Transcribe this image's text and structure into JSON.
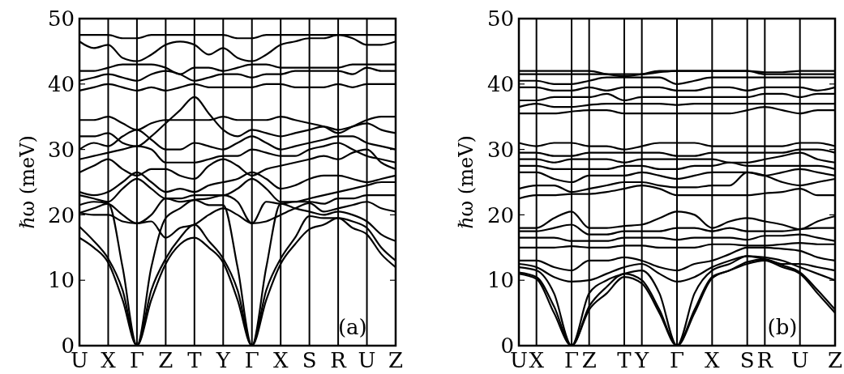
{
  "chart_data": [
    {
      "type": "line",
      "ylabel": "ℏω (meV)",
      "annotations": [
        "(a)"
      ],
      "grid": "x",
      "categories": [
        "U",
        null,
        "X",
        null,
        "Γ",
        null,
        "Z",
        null,
        "T",
        null,
        "Y",
        null,
        "Γ",
        null,
        "X",
        null,
        "S",
        null,
        "R",
        null,
        "U",
        null,
        "Z"
      ],
      "ylim": [
        0,
        50
      ],
      "yticks": [
        0,
        10,
        20,
        30,
        40,
        50
      ],
      "series": [
        {
          "color": "#000000",
          "values": [
            16.5,
            15,
            12.7,
            7,
            0,
            7,
            12.5,
            15.5,
            16.5,
            15,
            12.7,
            7,
            0,
            7,
            12.5,
            15.5,
            17.8,
            18.5,
            19.5,
            18,
            17,
            14,
            12
          ]
        },
        {
          "color": "#000000",
          "values": [
            18.2,
            16,
            13.3,
            8.5,
            0,
            8.5,
            13.3,
            16.5,
            18.5,
            16,
            13.3,
            8.5,
            0,
            8.5,
            13.3,
            16.5,
            19.8,
            19.5,
            19.5,
            19,
            18,
            15,
            13
          ]
        },
        {
          "color": "#000000",
          "values": [
            20.3,
            21,
            21.7,
            12,
            0,
            12,
            19.5,
            21,
            22.3,
            21.5,
            21.5,
            12,
            0,
            12,
            21.7,
            21,
            20.5,
            20,
            20.5,
            20,
            19,
            17,
            16
          ]
        },
        {
          "color": "#000000",
          "values": [
            20.3,
            20,
            20,
            19,
            18.7,
            19,
            16.5,
            18,
            18.5,
            20,
            21,
            20,
            18.7,
            19,
            20,
            21,
            21.8,
            20.5,
            21,
            21.5,
            22,
            21,
            20.5
          ]
        },
        {
          "color": "#000000",
          "values": [
            21.5,
            22,
            21.7,
            20,
            18.7,
            20,
            22.5,
            22,
            22.3,
            22.5,
            23,
            22,
            18.7,
            22,
            21.7,
            22,
            22,
            21.7,
            22.5,
            22.5,
            23,
            23,
            23
          ]
        },
        {
          "color": "#000000",
          "values": [
            23,
            22.5,
            22,
            24,
            25.5,
            24,
            22.5,
            22.5,
            23,
            23,
            23,
            24,
            25.5,
            24,
            22,
            22,
            22.5,
            23,
            23.5,
            24,
            24.5,
            25,
            25
          ]
        },
        {
          "color": "#000000",
          "values": [
            23.5,
            23,
            23.5,
            25,
            26.5,
            25,
            23.5,
            24,
            23.5,
            24.5,
            25,
            25.5,
            26.5,
            25.5,
            24,
            24.5,
            25.5,
            26,
            26,
            25.5,
            25,
            25.5,
            26
          ]
        },
        {
          "color": "#000000",
          "values": [
            26.5,
            27.5,
            28.5,
            27,
            26,
            27,
            27,
            26,
            25.5,
            27.5,
            28.5,
            27.5,
            26,
            27,
            27.5,
            28,
            28.5,
            29,
            28.5,
            29.5,
            30,
            28,
            27
          ]
        },
        {
          "color": "#000000",
          "values": [
            28.5,
            29,
            29.5,
            30,
            30.5,
            30,
            28,
            28,
            28,
            28.5,
            29,
            29,
            30,
            29.5,
            29,
            29,
            30,
            30.5,
            31,
            30,
            29,
            28.5,
            28
          ]
        },
        {
          "color": "#000000",
          "values": [
            30,
            31,
            30.5,
            32,
            33,
            31.5,
            30,
            30,
            31,
            30.5,
            30,
            31,
            32,
            31,
            30,
            30.5,
            31,
            31.5,
            32,
            32,
            31,
            30.5,
            30
          ]
        },
        {
          "color": "#000000",
          "values": [
            32,
            32,
            32.5,
            31,
            30.5,
            32,
            34,
            36,
            38,
            35.5,
            33,
            32,
            33,
            32.5,
            32,
            32.5,
            33,
            33.5,
            33,
            33.5,
            34,
            33,
            32.5
          ]
        },
        {
          "color": "#000000",
          "values": [
            34.5,
            34.5,
            35,
            34,
            33,
            34,
            34.5,
            34.5,
            34.5,
            34.5,
            35,
            34.5,
            34.5,
            34.5,
            35,
            34.5,
            34,
            33.5,
            32.5,
            33.5,
            34.5,
            35,
            35
          ]
        },
        {
          "color": "#000000",
          "values": [
            39,
            39.5,
            40,
            39.5,
            39,
            39.5,
            39,
            39.5,
            40,
            39.5,
            39.5,
            39.5,
            39.5,
            40,
            40,
            39.5,
            39.5,
            39.5,
            40,
            39.5,
            40,
            40,
            40
          ]
        },
        {
          "color": "#000000",
          "values": [
            40.5,
            41,
            41.5,
            41,
            40.5,
            41.5,
            42,
            41.5,
            40.5,
            41,
            41.5,
            41.5,
            41,
            41.5,
            41.5,
            42,
            42,
            42,
            42,
            41.5,
            42.5,
            42,
            42
          ]
        },
        {
          "color": "#000000",
          "values": [
            42,
            42,
            42.5,
            43,
            43,
            43,
            42.5,
            41.5,
            42.5,
            42.5,
            42,
            42.5,
            43,
            43,
            42.5,
            42.5,
            42.5,
            42.5,
            42.5,
            43,
            43,
            43,
            43
          ]
        },
        {
          "color": "#000000",
          "values": [
            46.5,
            45.5,
            46,
            44,
            43.5,
            44.5,
            46,
            46.5,
            46,
            44.5,
            45.5,
            44,
            43.5,
            44.5,
            46,
            46.5,
            47,
            47,
            47.5,
            47,
            46,
            46,
            46.5
          ]
        },
        {
          "color": "#000000",
          "values": [
            47.5,
            47.5,
            47.5,
            47,
            47,
            47.5,
            47.5,
            47.5,
            47.5,
            47.5,
            47.5,
            47,
            47,
            47.5,
            47.5,
            47.5,
            47.5,
            47.5,
            47.5,
            47.5,
            47.5,
            47.5,
            47.5
          ]
        }
      ]
    },
    {
      "type": "line",
      "ylabel": "ℏω (meV)",
      "annotations": [
        "(b)"
      ],
      "grid": "x",
      "categories": [
        "U",
        "X",
        null,
        "Γ",
        "Z",
        null,
        "T",
        "Y",
        null,
        "Γ",
        null,
        "X",
        null,
        "S",
        "R",
        null,
        "U",
        null,
        "Z"
      ],
      "ylim": [
        0,
        50
      ],
      "yticks": [
        0,
        10,
        20,
        30,
        40,
        50
      ],
      "series": [
        {
          "color": "#000000",
          "values": [
            11,
            10.2,
            5,
            0,
            5.5,
            8,
            10.5,
            9.5,
            5,
            0,
            5,
            10.3,
            11.5,
            12.5,
            13,
            12,
            11,
            8,
            5
          ]
        },
        {
          "color": "#000000",
          "values": [
            11.2,
            10.5,
            6,
            0,
            6,
            9,
            11,
            10,
            5.5,
            0,
            5.5,
            10.5,
            11.5,
            12.8,
            13.2,
            12.3,
            11.2,
            8.5,
            5.5
          ]
        },
        {
          "color": "#000000",
          "values": [
            12,
            11.5,
            8,
            0,
            8,
            10,
            11,
            11.5,
            8,
            0,
            8,
            11.5,
            12.5,
            13.7,
            13.5,
            13,
            12,
            11,
            10
          ]
        },
        {
          "color": "#000000",
          "values": [
            12.5,
            12,
            10.5,
            9.8,
            10,
            11,
            12,
            12.5,
            11,
            9.8,
            10.5,
            12,
            13,
            13.7,
            13.2,
            12.5,
            12.5,
            12,
            11.5
          ]
        },
        {
          "color": "#000000",
          "values": [
            13,
            13,
            12,
            11.5,
            13,
            13,
            13.5,
            13,
            12,
            11.5,
            12.5,
            13,
            14,
            15,
            15,
            14.8,
            14.5,
            13.5,
            13
          ]
        },
        {
          "color": "#000000",
          "values": [
            15,
            15,
            15,
            15.2,
            15,
            15,
            15.3,
            15.3,
            15,
            15,
            15,
            15.5,
            15.5,
            15.3,
            15.3,
            15.5,
            15.7,
            15.5,
            15.5
          ]
        },
        {
          "color": "#000000",
          "values": [
            16.5,
            16.5,
            16.5,
            16,
            16,
            16,
            16.5,
            16.5,
            16.5,
            16.2,
            16.5,
            16.5,
            16.5,
            16.2,
            16.8,
            16.8,
            17,
            16.5,
            16
          ]
        },
        {
          "color": "#000000",
          "values": [
            17.5,
            17.5,
            18,
            18.5,
            17,
            17,
            17.5,
            17.5,
            17.5,
            18,
            18,
            17.5,
            18,
            17.5,
            17.5,
            17.5,
            17.8,
            18,
            18
          ]
        },
        {
          "color": "#000000",
          "values": [
            18,
            18,
            19.5,
            20.5,
            18,
            18,
            18.3,
            18.5,
            19.5,
            20.5,
            20,
            18,
            19,
            19.5,
            19,
            18.5,
            17.8,
            19,
            19.8
          ]
        },
        {
          "color": "#000000",
          "values": [
            22.5,
            23,
            23,
            23.2,
            23.2,
            23.5,
            24,
            24.5,
            24,
            23,
            23,
            23,
            23,
            23,
            23.3,
            23.5,
            24,
            23,
            23
          ]
        },
        {
          "color": "#000000",
          "values": [
            24,
            24.5,
            24.5,
            23.5,
            24,
            24.5,
            25,
            25,
            24.5,
            24.2,
            24.2,
            24.5,
            24.5,
            26.5,
            26,
            25,
            24.5,
            25,
            25.5
          ]
        },
        {
          "color": "#000000",
          "values": [
            26.5,
            26.5,
            25.5,
            25,
            26,
            26,
            26,
            26.5,
            26,
            25.5,
            26,
            26.5,
            26.5,
            26.5,
            26,
            26.5,
            27,
            26.5,
            26
          ]
        },
        {
          "color": "#000000",
          "values": [
            27.5,
            27.5,
            27,
            27,
            27,
            27,
            27.5,
            27.5,
            27,
            27,
            27.5,
            27.5,
            28,
            27.5,
            27.5,
            27.5,
            27.5,
            27.5,
            27
          ]
        },
        {
          "color": "#000000",
          "values": [
            28.5,
            28.5,
            28,
            28.5,
            28.5,
            28.5,
            28,
            28.5,
            28.5,
            28.5,
            28.5,
            28.5,
            28,
            28,
            28.5,
            29,
            29.5,
            28.5,
            28
          ]
        },
        {
          "color": "#000000",
          "values": [
            29.5,
            29.5,
            29,
            29,
            29.5,
            29.5,
            29.5,
            29.5,
            29.5,
            29,
            29,
            29.5,
            29.5,
            29.5,
            29.5,
            29.5,
            30,
            30,
            29.5
          ]
        },
        {
          "color": "#000000",
          "values": [
            31,
            30.5,
            31,
            31,
            30.5,
            30.5,
            30,
            30.5,
            31,
            31,
            31,
            30.5,
            30.5,
            30.5,
            30.5,
            30.5,
            31,
            31,
            30.5
          ]
        },
        {
          "color": "#000000",
          "values": [
            35.5,
            35.5,
            35.5,
            35.8,
            36,
            36,
            35.5,
            35.5,
            35.5,
            35.5,
            35.5,
            35.5,
            35.5,
            36,
            36.5,
            36,
            35.5,
            36,
            36
          ]
        },
        {
          "color": "#000000",
          "values": [
            36.5,
            37,
            36.5,
            36.5,
            36.8,
            37,
            37,
            37,
            37,
            36.8,
            37,
            37,
            37,
            37,
            37,
            37,
            37,
            37,
            37
          ]
        },
        {
          "color": "#000000",
          "values": [
            37.5,
            37.5,
            38,
            38,
            38,
            38.5,
            37.5,
            38,
            38,
            38,
            38,
            38,
            38,
            38,
            38.5,
            38.5,
            38,
            38.5,
            38.5
          ]
        },
        {
          "color": "#000000",
          "values": [
            39.5,
            39.5,
            39,
            39,
            39.5,
            39,
            39.5,
            39.5,
            39.5,
            39,
            39,
            39.5,
            39.5,
            39,
            39.5,
            39.5,
            39.5,
            39,
            39.5
          ]
        },
        {
          "color": "#000000",
          "values": [
            40.5,
            40.5,
            40,
            40,
            40.5,
            41,
            41,
            41,
            41,
            40,
            40.5,
            41,
            41,
            41,
            41,
            41,
            41,
            41,
            41
          ]
        },
        {
          "color": "#000000",
          "values": [
            41.5,
            41.5,
            41.5,
            41.5,
            41.5,
            41.5,
            41.5,
            41.5,
            41.8,
            42,
            42,
            42,
            42,
            42,
            41.5,
            41.5,
            41.5,
            41.5,
            41.5
          ]
        },
        {
          "color": "#000000",
          "values": [
            42,
            42,
            42,
            42,
            42,
            41.5,
            41.2,
            41.5,
            42,
            42,
            42,
            42,
            42,
            42,
            41.8,
            41.8,
            42,
            42,
            42
          ]
        }
      ]
    }
  ]
}
